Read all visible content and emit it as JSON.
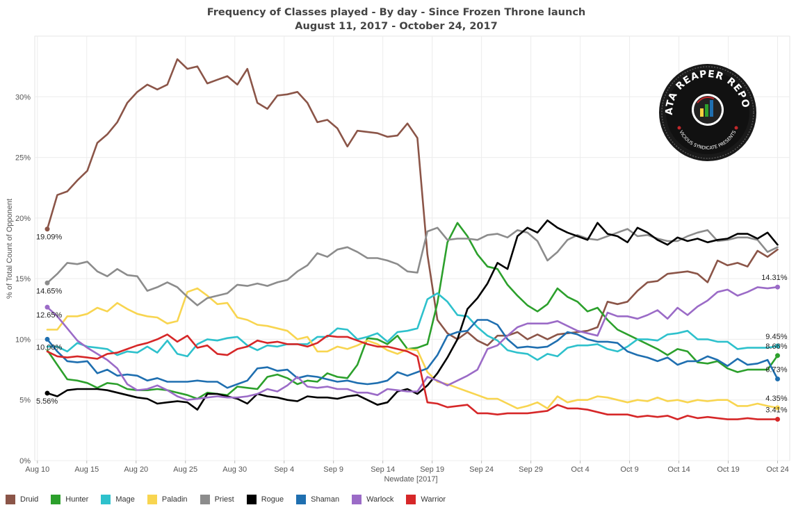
{
  "chart_data": {
    "type": "line",
    "title": "Frequency of Classes played - By day - Since Frozen Throne launch",
    "subtitle": "August 11, 2017 - October 24, 2017",
    "xlabel": "Newdate [2017]",
    "ylabel": "% of Total Count of Opponent",
    "x_tick_labels": [
      "Aug 10",
      "Aug 15",
      "Aug 20",
      "Aug 25",
      "Aug 30",
      "Sep 4",
      "Sep 9",
      "Sep 14",
      "Sep 19",
      "Sep 24",
      "Sep 29",
      "Oct 4",
      "Oct 9",
      "Oct 14",
      "Oct 19",
      "Oct 24"
    ],
    "y_tick_labels": [
      "0%",
      "5%",
      "10%",
      "15%",
      "20%",
      "25%",
      "30%"
    ],
    "ylim": [
      0,
      35
    ],
    "x_start": "2017-08-11",
    "x_end": "2017-10-24",
    "grid": true,
    "legend_position": "bottom",
    "series": [
      {
        "name": "Druid",
        "color": "#8B5548",
        "start_label": "19.09%",
        "end_label": "",
        "values": [
          19.09,
          21.9,
          22.2,
          23.1,
          23.9,
          26.2,
          26.9,
          27.9,
          29.5,
          30.4,
          31.0,
          30.6,
          31.0,
          33.1,
          32.3,
          32.5,
          31.1,
          31.4,
          31.7,
          31.0,
          32.3,
          29.5,
          29.0,
          30.1,
          30.2,
          30.4,
          29.5,
          27.9,
          28.1,
          27.4,
          25.9,
          27.2,
          27.1,
          27.0,
          26.7,
          26.8,
          27.8,
          26.6,
          17.0,
          11.6,
          10.5,
          10.0,
          10.6,
          9.9,
          9.5,
          10.3,
          10.3,
          10.6,
          10.0,
          10.4,
          10.0,
          10.4,
          10.5,
          10.6,
          10.7,
          11.0,
          13.1,
          12.9,
          13.1,
          14.0,
          14.7,
          14.8,
          15.4,
          15.5,
          15.6,
          15.4,
          14.7,
          16.5,
          16.1,
          16.3,
          16.0,
          17.3,
          16.8,
          17.4
        ]
      },
      {
        "name": "Hunter",
        "color": "#2CA02C",
        "start_label": "",
        "end_label": "8.66%",
        "values": [
          9.1,
          7.9,
          6.7,
          6.6,
          6.4,
          6.0,
          6.4,
          6.3,
          5.9,
          5.8,
          5.8,
          5.9,
          5.8,
          5.6,
          5.4,
          5.1,
          5.6,
          5.5,
          5.4,
          6.1,
          6.0,
          5.9,
          6.9,
          7.1,
          6.8,
          6.3,
          6.6,
          6.5,
          7.2,
          6.9,
          6.8,
          7.9,
          10.1,
          10.0,
          9.6,
          10.3,
          9.2,
          9.3,
          9.6,
          13.0,
          18.0,
          19.6,
          18.5,
          17.0,
          16.0,
          15.8,
          14.5,
          13.6,
          12.8,
          12.3,
          12.9,
          14.2,
          13.5,
          13.1,
          12.3,
          12.6,
          11.6,
          10.8,
          10.4,
          10.0,
          9.6,
          9.2,
          8.7,
          9.2,
          9.0,
          8.1,
          8.0,
          8.2,
          7.6,
          7.3,
          7.5,
          7.5,
          7.5,
          8.66
        ]
      },
      {
        "name": "Mage",
        "color": "#2EC1CC",
        "start_label": "",
        "end_label": "9.45%",
        "values": [
          9.4,
          9.4,
          9.0,
          9.7,
          9.4,
          9.3,
          9.2,
          8.7,
          9.0,
          8.9,
          9.4,
          8.9,
          9.9,
          8.8,
          8.6,
          9.6,
          10.0,
          9.9,
          10.1,
          10.2,
          9.5,
          9.1,
          9.5,
          9.4,
          9.6,
          9.6,
          9.6,
          10.2,
          10.2,
          10.9,
          10.8,
          10.0,
          10.2,
          10.5,
          9.8,
          10.6,
          10.7,
          10.9,
          13.3,
          13.8,
          13.1,
          12.0,
          11.9,
          11.0,
          10.3,
          9.9,
          9.1,
          8.9,
          8.8,
          8.3,
          8.8,
          8.6,
          9.3,
          9.5,
          9.5,
          9.6,
          9.2,
          9.0,
          9.4,
          10.0,
          10.0,
          9.9,
          10.4,
          10.5,
          10.7,
          10.0,
          10.0,
          9.8,
          9.8,
          9.2,
          9.3,
          9.3,
          9.3,
          9.45
        ]
      },
      {
        "name": "Paladin",
        "color": "#F8D550",
        "start_label": "",
        "end_label": "4.35%",
        "values": [
          10.8,
          10.8,
          11.9,
          11.9,
          12.1,
          12.6,
          12.3,
          13.0,
          12.5,
          12.1,
          11.9,
          11.8,
          11.3,
          11.5,
          13.9,
          14.2,
          13.6,
          12.9,
          13.0,
          11.8,
          11.6,
          11.2,
          11.1,
          10.9,
          10.7,
          10.0,
          10.2,
          9.0,
          9.0,
          9.4,
          9.2,
          9.5,
          9.9,
          9.6,
          9.1,
          8.8,
          9.2,
          9.1,
          7.3,
          6.5,
          6.3,
          6.0,
          5.7,
          5.4,
          5.1,
          5.1,
          4.7,
          4.3,
          4.5,
          4.8,
          4.3,
          5.3,
          4.8,
          5.0,
          5.0,
          5.3,
          5.2,
          5.0,
          4.8,
          5.0,
          4.9,
          5.2,
          4.9,
          5.0,
          4.8,
          5.0,
          4.9,
          5.0,
          5.0,
          4.5,
          4.5,
          4.7,
          4.5,
          4.35
        ]
      },
      {
        "name": "Priest",
        "color": "#8C8C8C",
        "start_label": "14.65%",
        "end_label": "",
        "values": [
          14.65,
          15.4,
          16.3,
          16.2,
          16.4,
          15.6,
          15.2,
          15.8,
          15.3,
          15.2,
          14.0,
          14.3,
          14.7,
          14.3,
          13.5,
          12.8,
          13.4,
          13.6,
          13.8,
          14.5,
          14.4,
          14.6,
          14.4,
          14.7,
          14.9,
          15.6,
          16.1,
          17.1,
          16.8,
          17.4,
          17.6,
          17.2,
          16.7,
          16.7,
          16.5,
          16.2,
          15.6,
          15.5,
          18.9,
          19.2,
          18.2,
          18.3,
          18.3,
          18.2,
          18.6,
          18.7,
          18.4,
          19.0,
          18.8,
          18.1,
          16.5,
          17.2,
          18.2,
          18.6,
          18.3,
          18.2,
          18.5,
          18.8,
          19.1,
          18.5,
          18.6,
          18.3,
          18.1,
          18.1,
          18.5,
          18.8,
          19.0,
          18.1,
          18.2,
          18.4,
          18.4,
          18.2,
          17.2,
          17.6
        ]
      },
      {
        "name": "Rogue",
        "color": "#000000",
        "start_label": "5.56%",
        "end_label": "",
        "values": [
          5.56,
          5.3,
          5.8,
          5.9,
          5.9,
          5.9,
          5.8,
          5.6,
          5.4,
          5.2,
          5.1,
          4.7,
          4.8,
          4.9,
          4.8,
          4.2,
          5.5,
          5.5,
          5.3,
          5.1,
          4.7,
          5.5,
          5.3,
          5.2,
          5.0,
          4.9,
          5.3,
          5.2,
          5.2,
          5.1,
          5.3,
          5.4,
          5.0,
          4.6,
          4.8,
          5.7,
          5.9,
          5.5,
          6.2,
          7.2,
          8.5,
          10.0,
          12.5,
          13.4,
          14.6,
          16.3,
          15.8,
          18.5,
          19.2,
          18.8,
          19.8,
          19.2,
          18.8,
          18.5,
          18.2,
          19.6,
          18.7,
          18.5,
          18.0,
          19.2,
          18.8,
          18.2,
          17.8,
          18.4,
          18.1,
          18.3,
          18.0,
          18.2,
          18.3,
          18.7,
          18.7,
          18.3,
          18.8,
          17.8
        ]
      },
      {
        "name": "Shaman",
        "color": "#1F6FB0",
        "start_label": "10.00%",
        "end_label": "6.73%",
        "values": [
          10.0,
          9.0,
          8.2,
          8.1,
          8.2,
          7.2,
          7.5,
          7.0,
          7.1,
          7.0,
          6.6,
          6.8,
          6.5,
          6.5,
          6.5,
          6.6,
          6.5,
          6.5,
          6.0,
          6.3,
          6.6,
          7.6,
          7.7,
          7.4,
          7.5,
          6.8,
          7.0,
          6.9,
          6.7,
          6.5,
          6.6,
          6.4,
          6.3,
          6.4,
          6.6,
          7.3,
          7.0,
          7.3,
          7.6,
          8.7,
          10.3,
          10.6,
          10.7,
          11.6,
          11.6,
          11.2,
          10.0,
          9.3,
          9.4,
          9.3,
          9.4,
          9.9,
          10.6,
          10.4,
          10.0,
          9.8,
          9.8,
          9.7,
          9.0,
          8.7,
          8.5,
          8.2,
          8.5,
          7.9,
          8.2,
          8.2,
          8.6,
          8.3,
          7.8,
          8.4,
          7.9,
          8.0,
          8.3,
          6.73
        ]
      },
      {
        "name": "Warlock",
        "color": "#9B6BC7",
        "start_label": "12.65%",
        "end_label": "14.31%",
        "values": [
          12.65,
          11.9,
          10.9,
          9.9,
          9.3,
          8.8,
          8.3,
          7.6,
          6.3,
          5.8,
          5.9,
          6.2,
          5.8,
          5.3,
          5.0,
          5.1,
          5.2,
          5.3,
          5.2,
          5.2,
          5.3,
          5.5,
          5.9,
          5.7,
          6.2,
          6.9,
          6.1,
          6.0,
          6.1,
          5.9,
          5.9,
          5.6,
          5.6,
          5.4,
          5.9,
          5.8,
          5.7,
          5.7,
          6.9,
          6.6,
          6.2,
          6.6,
          7.0,
          7.5,
          9.2,
          9.5,
          10.3,
          11.0,
          11.3,
          11.3,
          11.3,
          11.5,
          11.1,
          10.7,
          10.5,
          10.3,
          12.2,
          11.9,
          11.9,
          11.7,
          12.0,
          12.4,
          11.7,
          12.6,
          12.0,
          12.7,
          13.2,
          13.9,
          14.1,
          13.6,
          13.9,
          14.3,
          14.2,
          14.31
        ]
      },
      {
        "name": "Warrior",
        "color": "#D62728",
        "start_label": "",
        "end_label": "3.41%",
        "values": [
          9.0,
          8.6,
          8.5,
          8.6,
          8.5,
          8.4,
          8.8,
          8.9,
          9.2,
          9.5,
          9.7,
          10.0,
          10.4,
          9.8,
          10.3,
          9.3,
          9.5,
          8.8,
          8.7,
          9.2,
          9.4,
          9.9,
          9.7,
          9.8,
          9.6,
          9.6,
          9.4,
          9.7,
          10.3,
          10.2,
          10.2,
          9.9,
          9.6,
          9.4,
          9.4,
          9.2,
          9.0,
          8.6,
          4.8,
          4.7,
          4.4,
          4.5,
          4.6,
          3.9,
          3.9,
          3.8,
          3.9,
          3.9,
          3.9,
          4.0,
          4.1,
          4.6,
          4.3,
          4.3,
          4.2,
          4.0,
          3.8,
          3.8,
          3.8,
          3.6,
          3.7,
          3.6,
          3.7,
          3.4,
          3.7,
          3.5,
          3.6,
          3.5,
          3.4,
          3.4,
          3.5,
          3.4,
          3.4,
          3.41
        ]
      }
    ]
  },
  "logo": {
    "title": "DATA REAPER REPORT",
    "subtitle": "VICIOUS SYNDICATE PRESENTS",
    "ring_color": "#1A1A1A",
    "accent": "#C0282B"
  }
}
